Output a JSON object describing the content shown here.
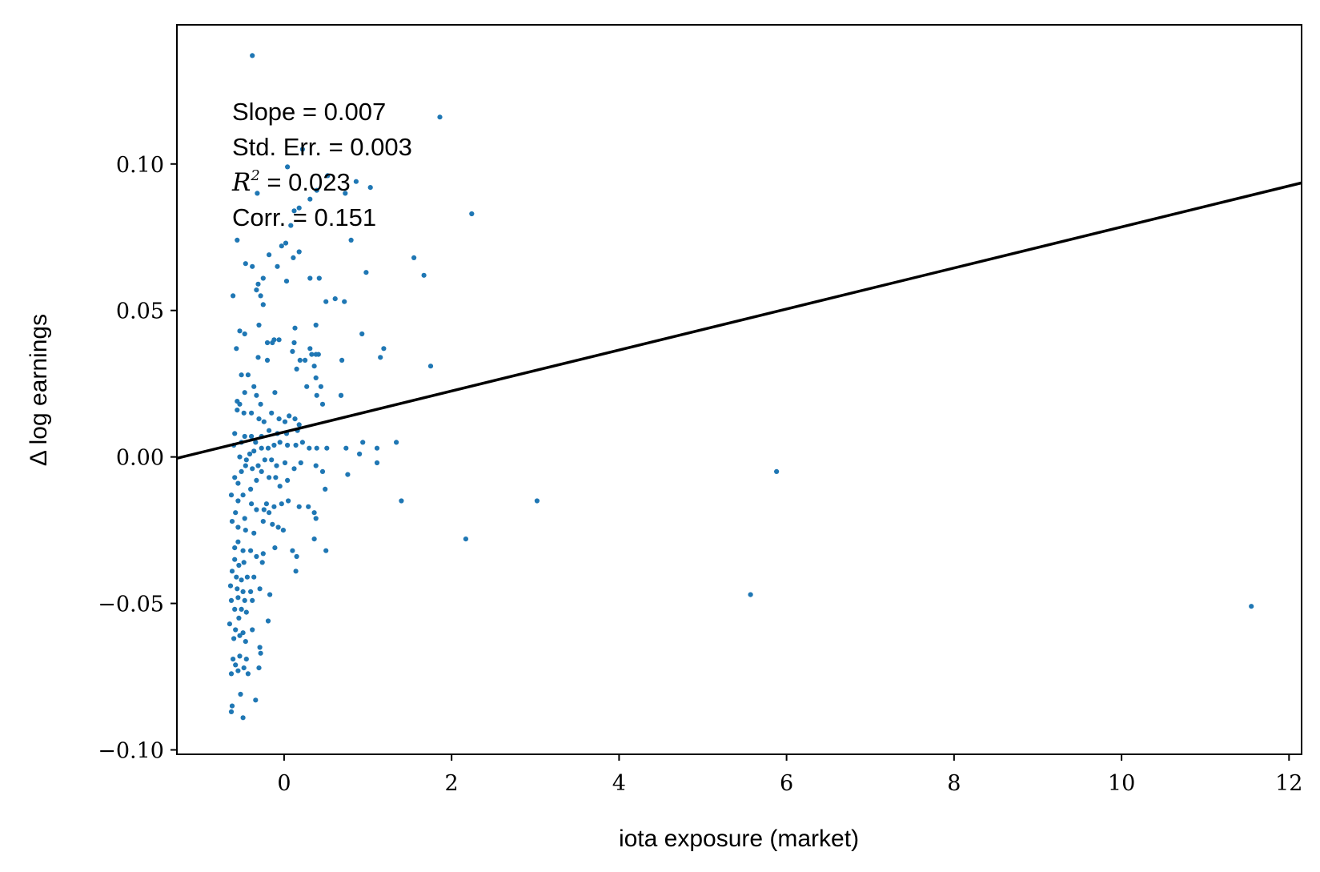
{
  "chart_data": {
    "type": "scatter",
    "xlabel": "iota exposure (market)",
    "ylabel": "Δ log earnings",
    "xlim": [
      -1.28,
      12.15
    ],
    "ylim": [
      -0.1015,
      0.1475
    ],
    "xticks": [
      0,
      2,
      4,
      6,
      8,
      10,
      12
    ],
    "yticks": [
      -0.1,
      -0.05,
      0.0,
      0.05,
      0.1
    ],
    "xtick_labels": [
      "0",
      "2",
      "4",
      "6",
      "8",
      "10",
      "12"
    ],
    "ytick_labels": [
      "−0.10",
      "−0.05",
      "0.00",
      "0.05",
      "0.10"
    ],
    "grid": false,
    "annotation": {
      "slope_text": "Slope = 0.007",
      "stderr_text": "Std. Err. = 0.003",
      "r2_symbol": "R",
      "r2_exponent": "2",
      "r2_text": " = 0.023",
      "corr_text": "Corr. = 0.151"
    },
    "fit_line": {
      "slope": 0.007,
      "intercept": 0.0085
    },
    "point_color": "#1f77b4",
    "line_color": "#000000",
    "points": [
      [
        -0.38,
        0.137
      ],
      [
        1.86,
        0.116
      ],
      [
        2.24,
        0.083
      ],
      [
        1.55,
        0.068
      ],
      [
        1.67,
        0.062
      ],
      [
        0.98,
        0.063
      ],
      [
        1.75,
        0.031
      ],
      [
        1.19,
        0.037
      ],
      [
        1.15,
        0.034
      ],
      [
        0.93,
        0.042
      ],
      [
        0.8,
        0.074
      ],
      [
        0.72,
        0.053
      ],
      [
        0.61,
        0.054
      ],
      [
        0.69,
        0.033
      ],
      [
        0.68,
        0.021
      ],
      [
        0.22,
        0.105
      ],
      [
        0.04,
        0.099
      ],
      [
        0.52,
        0.096
      ],
      [
        0.86,
        0.094
      ],
      [
        1.03,
        0.092
      ],
      [
        0.39,
        0.091
      ],
      [
        0.73,
        0.09
      ],
      [
        0.18,
        0.085
      ],
      [
        0.31,
        0.088
      ],
      [
        -0.32,
        0.09
      ],
      [
        -0.18,
        0.069
      ],
      [
        -0.08,
        0.065
      ],
      [
        0.02,
        0.073
      ],
      [
        0.08,
        0.079
      ],
      [
        0.12,
        0.084
      ],
      [
        -0.03,
        0.072
      ],
      [
        0.11,
        0.068
      ],
      [
        0.18,
        0.07
      ],
      [
        0.03,
        0.06
      ],
      [
        0.31,
        0.061
      ],
      [
        0.5,
        0.053
      ],
      [
        0.42,
        0.061
      ],
      [
        -0.25,
        0.061
      ],
      [
        -0.31,
        0.059
      ],
      [
        -0.33,
        0.057
      ],
      [
        -0.28,
        0.055
      ],
      [
        -0.38,
        0.065
      ],
      [
        -0.46,
        0.066
      ],
      [
        -0.56,
        0.074
      ],
      [
        -0.61,
        0.055
      ],
      [
        -0.53,
        0.043
      ],
      [
        -0.47,
        0.042
      ],
      [
        -0.25,
        0.052
      ],
      [
        -0.3,
        0.045
      ],
      [
        -0.2,
        0.039
      ],
      [
        -0.14,
        0.039
      ],
      [
        -0.12,
        0.04
      ],
      [
        -0.06,
        0.04
      ],
      [
        0.13,
        0.044
      ],
      [
        0.38,
        0.045
      ],
      [
        0.12,
        0.039
      ],
      [
        0.1,
        0.036
      ],
      [
        0.19,
        0.033
      ],
      [
        0.25,
        0.033
      ],
      [
        0.31,
        0.037
      ],
      [
        0.38,
        0.035
      ],
      [
        0.33,
        0.035
      ],
      [
        0.41,
        0.035
      ],
      [
        0.15,
        0.03
      ],
      [
        0.36,
        0.031
      ],
      [
        0.38,
        0.027
      ],
      [
        0.27,
        0.024
      ],
      [
        0.44,
        0.024
      ],
      [
        0.46,
        0.018
      ],
      [
        0.39,
        0.021
      ],
      [
        0.68,
        0.021
      ],
      [
        -0.57,
        0.037
      ],
      [
        -0.51,
        0.028
      ],
      [
        -0.43,
        0.028
      ],
      [
        -0.47,
        0.022
      ],
      [
        -0.36,
        0.024
      ],
      [
        -0.31,
        0.034
      ],
      [
        -0.2,
        0.033
      ],
      [
        -0.28,
        0.018
      ],
      [
        -0.33,
        0.021
      ],
      [
        -0.56,
        0.019
      ],
      [
        -0.53,
        0.018
      ],
      [
        -0.56,
        0.016
      ],
      [
        -0.48,
        0.015
      ],
      [
        -0.39,
        0.015
      ],
      [
        -0.3,
        0.013
      ],
      [
        -0.15,
        0.015
      ],
      [
        -0.11,
        0.022
      ],
      [
        -0.24,
        0.012
      ],
      [
        -0.06,
        0.013
      ],
      [
        0.01,
        0.012
      ],
      [
        0.06,
        0.014
      ],
      [
        0.13,
        0.013
      ],
      [
        0.18,
        0.011
      ],
      [
        0.16,
        0.009
      ],
      [
        0.03,
        0.008
      ],
      [
        -0.08,
        0.008
      ],
      [
        -0.18,
        0.009
      ],
      [
        -0.27,
        0.007
      ],
      [
        -0.39,
        0.007
      ],
      [
        -0.34,
        0.005
      ],
      [
        -0.47,
        0.007
      ],
      [
        -0.51,
        0.005
      ],
      [
        -0.6,
        0.004
      ],
      [
        -0.59,
        0.008
      ],
      [
        -0.53,
        0.0
      ],
      [
        -0.45,
        -0.001
      ],
      [
        -0.41,
        0.001
      ],
      [
        -0.36,
        0.002
      ],
      [
        -0.27,
        0.003
      ],
      [
        -0.19,
        0.003
      ],
      [
        -0.12,
        0.004
      ],
      [
        -0.05,
        0.005
      ],
      [
        0.04,
        0.004
      ],
      [
        0.14,
        0.004
      ],
      [
        0.22,
        0.005
      ],
      [
        0.3,
        0.003
      ],
      [
        0.39,
        0.003
      ],
      [
        0.51,
        0.003
      ],
      [
        0.74,
        0.003
      ],
      [
        0.94,
        0.005
      ],
      [
        1.11,
        0.003
      ],
      [
        1.34,
        0.005
      ],
      [
        1.11,
        -0.002
      ],
      [
        0.9,
        0.001
      ],
      [
        0.76,
        -0.006
      ],
      [
        0.2,
        -0.002
      ],
      [
        0.12,
        -0.004
      ],
      [
        0.01,
        -0.002
      ],
      [
        -0.09,
        -0.003
      ],
      [
        -0.15,
        -0.001
      ],
      [
        -0.23,
        -0.001
      ],
      [
        -0.31,
        -0.003
      ],
      [
        -0.38,
        -0.004
      ],
      [
        -0.46,
        -0.003
      ],
      [
        -0.51,
        -0.005
      ],
      [
        -0.59,
        -0.007
      ],
      [
        -0.55,
        -0.009
      ],
      [
        -0.63,
        -0.013
      ],
      [
        -0.55,
        -0.015
      ],
      [
        -0.49,
        -0.013
      ],
      [
        -0.4,
        -0.011
      ],
      [
        -0.33,
        -0.008
      ],
      [
        -0.27,
        -0.005
      ],
      [
        -0.18,
        -0.007
      ],
      [
        -0.1,
        -0.007
      ],
      [
        -0.05,
        -0.01
      ],
      [
        0.04,
        -0.008
      ],
      [
        0.05,
        -0.015
      ],
      [
        -0.03,
        -0.016
      ],
      [
        -0.12,
        -0.017
      ],
      [
        -0.21,
        -0.016
      ],
      [
        -0.24,
        -0.018
      ],
      [
        -0.33,
        -0.018
      ],
      [
        -0.39,
        -0.016
      ],
      [
        -0.47,
        -0.021
      ],
      [
        -0.58,
        -0.019
      ],
      [
        -0.62,
        -0.022
      ],
      [
        -0.55,
        -0.024
      ],
      [
        -0.46,
        -0.025
      ],
      [
        -0.36,
        -0.026
      ],
      [
        -0.25,
        -0.022
      ],
      [
        -0.18,
        -0.019
      ],
      [
        -0.14,
        -0.023
      ],
      [
        -0.07,
        -0.024
      ],
      [
        -0.01,
        -0.025
      ],
      [
        0.18,
        -0.017
      ],
      [
        0.29,
        -0.017
      ],
      [
        0.36,
        -0.019
      ],
      [
        0.38,
        -0.021
      ],
      [
        0.49,
        -0.011
      ],
      [
        0.46,
        -0.005
      ],
      [
        0.38,
        -0.003
      ],
      [
        1.4,
        -0.015
      ],
      [
        3.02,
        -0.015
      ],
      [
        2.17,
        -0.028
      ],
      [
        5.88,
        -0.005
      ],
      [
        5.57,
        -0.047
      ],
      [
        11.55,
        -0.051
      ],
      [
        -0.59,
        -0.031
      ],
      [
        -0.55,
        -0.029
      ],
      [
        -0.49,
        -0.032
      ],
      [
        -0.4,
        -0.032
      ],
      [
        -0.33,
        -0.034
      ],
      [
        -0.25,
        -0.033
      ],
      [
        -0.11,
        -0.031
      ],
      [
        0.1,
        -0.032
      ],
      [
        0.15,
        -0.034
      ],
      [
        0.36,
        -0.028
      ],
      [
        0.5,
        -0.032
      ],
      [
        0.14,
        -0.039
      ],
      [
        -0.59,
        -0.035
      ],
      [
        -0.54,
        -0.037
      ],
      [
        -0.48,
        -0.036
      ],
      [
        -0.62,
        -0.039
      ],
      [
        -0.57,
        -0.041
      ],
      [
        -0.51,
        -0.042
      ],
      [
        -0.44,
        -0.041
      ],
      [
        -0.36,
        -0.041
      ],
      [
        -0.26,
        -0.036
      ],
      [
        -0.64,
        -0.044
      ],
      [
        -0.56,
        -0.045
      ],
      [
        -0.49,
        -0.046
      ],
      [
        -0.4,
        -0.046
      ],
      [
        -0.29,
        -0.045
      ],
      [
        -0.17,
        -0.047
      ],
      [
        -0.63,
        -0.049
      ],
      [
        -0.55,
        -0.048
      ],
      [
        -0.47,
        -0.049
      ],
      [
        -0.38,
        -0.049
      ],
      [
        -0.59,
        -0.052
      ],
      [
        -0.51,
        -0.052
      ],
      [
        -0.45,
        -0.053
      ],
      [
        -0.54,
        -0.055
      ],
      [
        -0.65,
        -0.057
      ],
      [
        -0.58,
        -0.059
      ],
      [
        -0.49,
        -0.06
      ],
      [
        -0.38,
        -0.059
      ],
      [
        -0.19,
        -0.056
      ],
      [
        -0.6,
        -0.062
      ],
      [
        -0.53,
        -0.061
      ],
      [
        -0.46,
        -0.063
      ],
      [
        -0.29,
        -0.065
      ],
      [
        -0.61,
        -0.069
      ],
      [
        -0.53,
        -0.068
      ],
      [
        -0.45,
        -0.069
      ],
      [
        -0.28,
        -0.067
      ],
      [
        -0.58,
        -0.071
      ],
      [
        -0.48,
        -0.072
      ],
      [
        -0.55,
        -0.073
      ],
      [
        -0.63,
        -0.074
      ],
      [
        -0.3,
        -0.072
      ],
      [
        -0.43,
        -0.074
      ],
      [
        -0.52,
        -0.081
      ],
      [
        -0.34,
        -0.083
      ],
      [
        -0.62,
        -0.085
      ],
      [
        -0.63,
        -0.087
      ],
      [
        -0.49,
        -0.089
      ]
    ]
  }
}
